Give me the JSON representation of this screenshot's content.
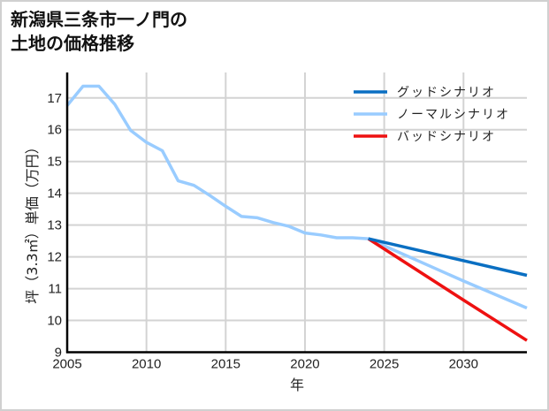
{
  "title": {
    "line1": "新潟県三条市一ノ門の",
    "line2": "土地の価格推移"
  },
  "chart_data": {
    "type": "line",
    "title": "新潟県三条市一ノ門の土地の価格推移",
    "xlabel": "年",
    "ylabel": "坪（3.3㎡）単価（万円）",
    "xlim": [
      2005,
      2034
    ],
    "ylim": [
      9,
      17.8
    ],
    "xticks": [
      2005,
      2010,
      2015,
      2020,
      2025,
      2030
    ],
    "yticks": [
      9,
      10,
      11,
      12,
      13,
      14,
      15,
      16,
      17
    ],
    "grid": true,
    "legend_position": "upper right",
    "series": [
      {
        "name": "グッドシナリオ",
        "color": "#0a6fc2",
        "x": [
          2024,
          2030,
          2034
        ],
        "values": [
          12.57,
          11.88,
          11.42
        ]
      },
      {
        "name": "ノーマルシナリオ",
        "color": "#99ccff",
        "x": [
          2005,
          2006,
          2007,
          2008,
          2009,
          2010,
          2011,
          2012,
          2013,
          2014,
          2015,
          2016,
          2017,
          2018,
          2019,
          2020,
          2021,
          2022,
          2023,
          2024,
          2030,
          2034
        ],
        "values": [
          16.76,
          17.37,
          17.37,
          16.8,
          15.98,
          15.6,
          15.34,
          14.39,
          14.25,
          13.93,
          13.59,
          13.27,
          13.23,
          13.08,
          12.96,
          12.75,
          12.69,
          12.6,
          12.6,
          12.57,
          11.24,
          10.39
        ]
      },
      {
        "name": "バッドシナリオ",
        "color": "#ee1111",
        "x": [
          2024,
          2030,
          2034
        ],
        "values": [
          12.57,
          10.64,
          9.37
        ]
      }
    ]
  }
}
